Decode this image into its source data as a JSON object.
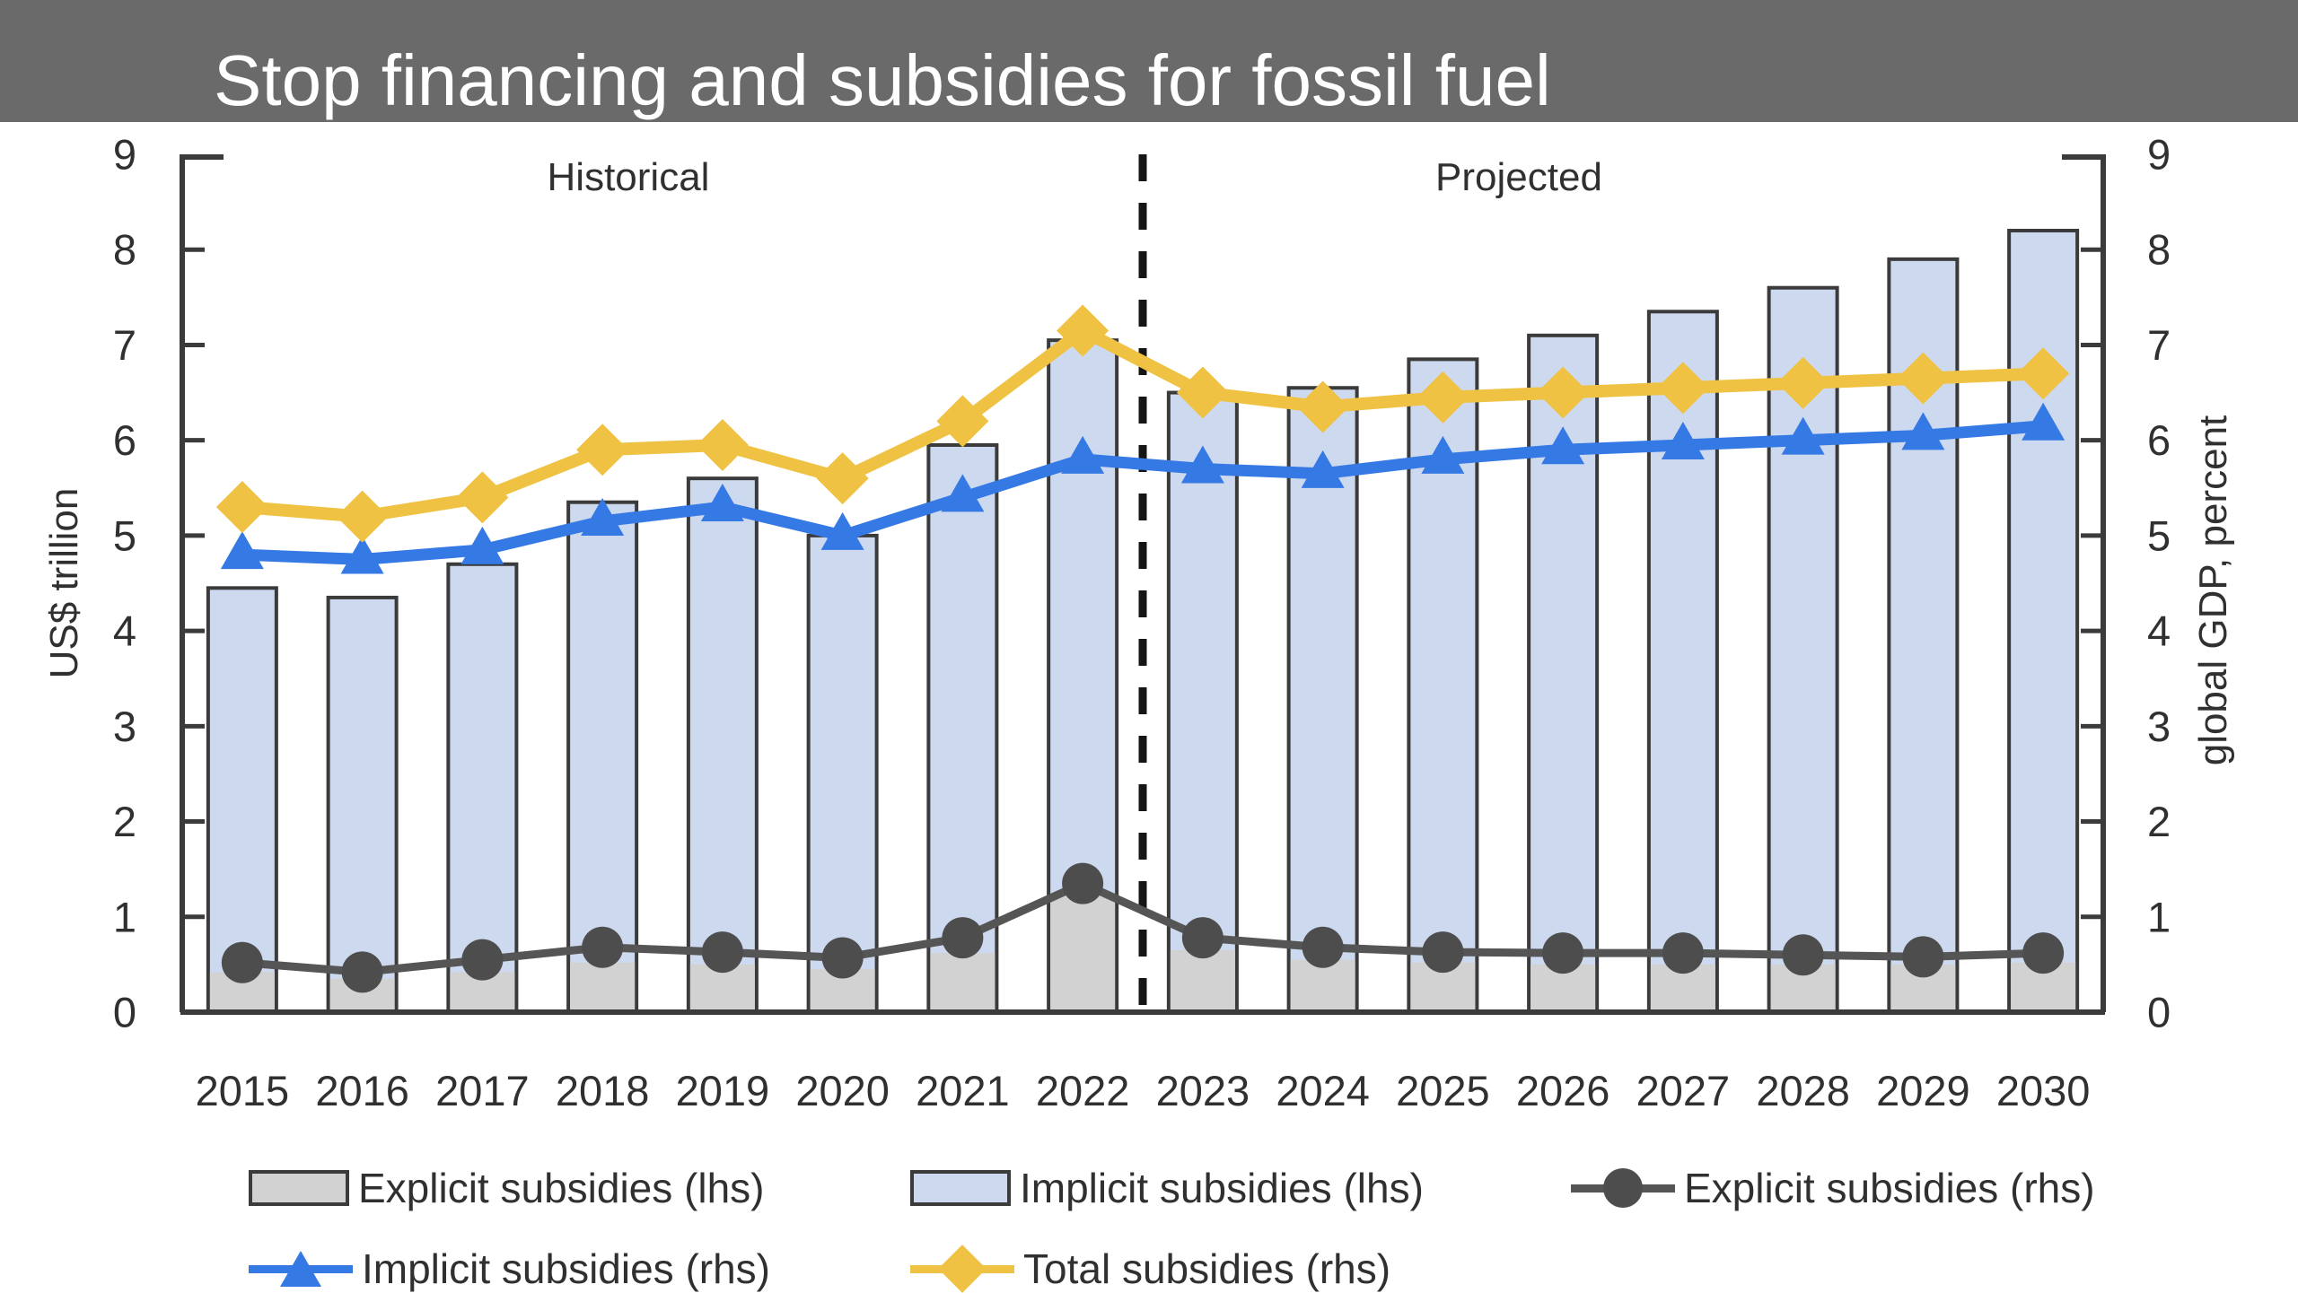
{
  "header": {
    "title": "Stop financing and subsidies for fossil fuel"
  },
  "chart_data": {
    "type": "bar",
    "subtype": "stacked-bars-with-lines",
    "title": "",
    "categories": [
      "2015",
      "2016",
      "2017",
      "2018",
      "2019",
      "2020",
      "2021",
      "2022",
      "2023",
      "2024",
      "2025",
      "2026",
      "2027",
      "2028",
      "2029",
      "2030"
    ],
    "left_axis": {
      "label": "US$ trillion",
      "range": [
        0,
        9
      ],
      "ticks": [
        "0",
        "1",
        "2",
        "3",
        "4",
        "5",
        "6",
        "7",
        "8",
        "9"
      ]
    },
    "right_axis": {
      "label": "global GDP, percent",
      "range": [
        0,
        9
      ],
      "ticks": [
        "0",
        "1",
        "2",
        "3",
        "4",
        "5",
        "6",
        "7",
        "8",
        "9"
      ]
    },
    "annotations": [
      {
        "label": "Historical"
      },
      {
        "label": "Projected"
      }
    ],
    "separator": {
      "after_category": "2022",
      "after_index": 7,
      "style": "dashed",
      "color": "#151515"
    },
    "grid": "off",
    "legend_position": "bottom",
    "series": [
      {
        "name": "Explicit subsidies (lhs)",
        "type": "bar",
        "stack": "lhs",
        "color": "#d2d2d2",
        "border": "#3b3b3b",
        "values": [
          0.42,
          0.35,
          0.42,
          0.52,
          0.5,
          0.45,
          0.62,
          1.22,
          0.65,
          0.55,
          0.52,
          0.5,
          0.5,
          0.5,
          0.5,
          0.52
        ]
      },
      {
        "name": "Implicit subsidies (lhs)",
        "type": "bar",
        "stack": "lhs",
        "color": "#cdd9ee",
        "border": "#3b3b3b",
        "values": [
          4.03,
          4.0,
          4.28,
          4.83,
          5.1,
          4.55,
          5.33,
          5.83,
          5.85,
          6.0,
          6.33,
          6.6,
          6.85,
          7.1,
          7.4,
          7.68
        ]
      },
      {
        "name": "Explicit subsidies (rhs)",
        "type": "line",
        "marker": "circle",
        "color": "#555555",
        "marker_color": "#4d4d4d",
        "width": 9,
        "values": [
          0.52,
          0.42,
          0.55,
          0.68,
          0.63,
          0.57,
          0.78,
          1.35,
          0.78,
          0.68,
          0.63,
          0.62,
          0.62,
          0.6,
          0.58,
          0.62
        ]
      },
      {
        "name": "Implicit subsidies (rhs)",
        "type": "line",
        "marker": "triangle",
        "color": "#3579e5",
        "marker_color": "#3579e5",
        "width": 13,
        "values": [
          4.8,
          4.75,
          4.85,
          5.15,
          5.3,
          5.0,
          5.4,
          5.8,
          5.7,
          5.65,
          5.8,
          5.9,
          5.95,
          6.0,
          6.05,
          6.15
        ]
      },
      {
        "name": "Total subsidies (rhs)",
        "type": "line",
        "marker": "diamond",
        "color": "#efc243",
        "marker_color": "#efc243",
        "width": 14,
        "values": [
          5.3,
          5.2,
          5.4,
          5.9,
          5.95,
          5.6,
          6.2,
          7.15,
          6.5,
          6.35,
          6.45,
          6.5,
          6.55,
          6.6,
          6.65,
          6.7
        ]
      }
    ],
    "bar_totals_lhs": [
      4.45,
      4.35,
      4.7,
      5.35,
      5.6,
      5.0,
      5.95,
      7.05,
      6.5,
      6.55,
      6.85,
      7.1,
      7.35,
      7.6,
      7.9,
      8.2
    ]
  },
  "legend": {
    "items": [
      {
        "label": "Explicit subsidies (lhs)",
        "marker": "gray-swatch"
      },
      {
        "label": "Implicit subsidies (lhs)",
        "marker": "blue-swatch"
      },
      {
        "label": "Explicit subsidies (rhs)",
        "marker": "gray-line-circle"
      },
      {
        "label": "Implicit subsidies (rhs)",
        "marker": "blue-line-triangle"
      },
      {
        "label": "Total subsidies (rhs)",
        "marker": "yellow-line-diamond"
      }
    ]
  },
  "colors": {
    "titlebar": "#6a6a6a",
    "axis": "#3b3b3b",
    "bar_gray": "#d2d2d2",
    "bar_blue": "#cdd9ee",
    "line_gray": "#555555",
    "line_blue": "#3579e5",
    "line_yellow": "#efc243"
  }
}
